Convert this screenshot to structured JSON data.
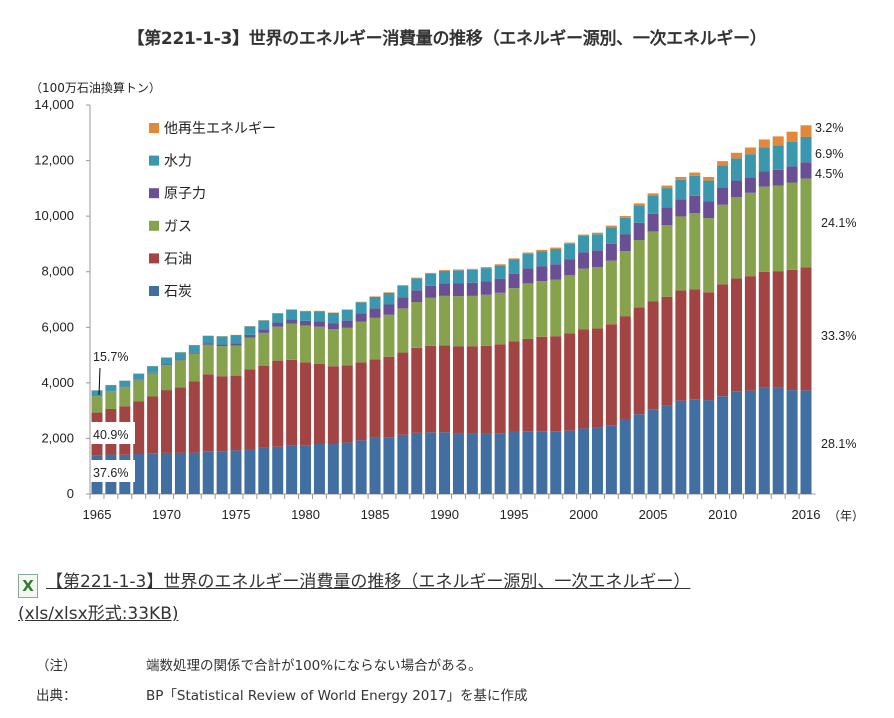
{
  "title": "【第221-1-3】世界のエネルギー消費量の推移（エネルギー源別、一次エネルギー）",
  "link": {
    "icon": "excel-file-icon",
    "icon_glyph": "X",
    "text": "【第221-1-3】世界のエネルギー消費量の推移（エネルギー源別、一次エネルギー）",
    "format": "(xls/xlsx形式:33KB)"
  },
  "notes": [
    {
      "label": "（注）",
      "text": "端数処理の関係で合計が100%にならない場合がある。"
    },
    {
      "label": "出典：",
      "text": "BP「Statistical Review of World Energy 2017」を基に作成"
    }
  ],
  "chart_data": {
    "type": "bar",
    "stacked": true,
    "title": "【第221-1-3】世界のエネルギー消費量の推移（エネルギー源別、一次エネルギー）",
    "ylabel": "（100万石油換算トン）",
    "xlabel": "（年）",
    "ylim": [
      0,
      14000
    ],
    "yticks": [
      0,
      2000,
      4000,
      6000,
      8000,
      10000,
      12000,
      14000
    ],
    "ytick_labels": [
      "0",
      "2,000",
      "4,000",
      "6,000",
      "8,000",
      "10,000",
      "12,000",
      "14,000"
    ],
    "xtick_labels": [
      "1965",
      "1970",
      "1975",
      "1980",
      "1985",
      "1990",
      "1995",
      "2000",
      "2005",
      "2010",
      "2016"
    ],
    "legend_position": "top-left",
    "categories": [
      "1965",
      "1966",
      "1967",
      "1968",
      "1969",
      "1970",
      "1971",
      "1972",
      "1973",
      "1974",
      "1975",
      "1976",
      "1977",
      "1978",
      "1979",
      "1980",
      "1981",
      "1982",
      "1983",
      "1984",
      "1985",
      "1986",
      "1987",
      "1988",
      "1989",
      "1990",
      "1991",
      "1992",
      "1993",
      "1994",
      "1995",
      "1996",
      "1997",
      "1998",
      "1999",
      "2000",
      "2001",
      "2002",
      "2003",
      "2004",
      "2005",
      "2006",
      "2007",
      "2008",
      "2009",
      "2010",
      "2011",
      "2012",
      "2013",
      "2014",
      "2015",
      "2016"
    ],
    "series": [
      {
        "name": "石炭",
        "color": "#416fa2",
        "values": [
          1400,
          1420,
          1410,
          1440,
          1470,
          1480,
          1480,
          1490,
          1540,
          1540,
          1570,
          1620,
          1670,
          1700,
          1740,
          1760,
          1800,
          1800,
          1850,
          1930,
          2030,
          2040,
          2130,
          2200,
          2220,
          2220,
          2180,
          2180,
          2180,
          2190,
          2250,
          2260,
          2260,
          2260,
          2280,
          2360,
          2380,
          2470,
          2700,
          2870,
          3050,
          3180,
          3360,
          3410,
          3380,
          3520,
          3700,
          3720,
          3820,
          3820,
          3740,
          3730
        ]
      },
      {
        "name": "石油",
        "color": "#a14443",
        "values": [
          1530,
          1640,
          1750,
          1900,
          2040,
          2260,
          2360,
          2560,
          2770,
          2700,
          2690,
          2870,
          2950,
          3100,
          3090,
          2980,
          2890,
          2800,
          2780,
          2810,
          2820,
          2900,
          2960,
          3060,
          3110,
          3130,
          3140,
          3140,
          3150,
          3200,
          3240,
          3320,
          3400,
          3420,
          3500,
          3570,
          3580,
          3640,
          3700,
          3840,
          3890,
          3920,
          3970,
          3960,
          3880,
          4030,
          4060,
          4120,
          4180,
          4200,
          4330,
          4420
        ]
      },
      {
        "name": "ガス",
        "color": "#87a24c",
        "values": [
          590,
          640,
          690,
          750,
          830,
          900,
          970,
          1000,
          1060,
          1080,
          1080,
          1140,
          1180,
          1220,
          1300,
          1320,
          1330,
          1330,
          1350,
          1460,
          1490,
          1510,
          1590,
          1650,
          1730,
          1780,
          1800,
          1810,
          1840,
          1850,
          1920,
          2000,
          2000,
          2040,
          2090,
          2180,
          2210,
          2290,
          2340,
          2430,
          2510,
          2580,
          2660,
          2740,
          2670,
          2860,
          2920,
          3000,
          3060,
          3080,
          3140,
          3200
        ]
      },
      {
        "name": "原子力",
        "color": "#6a4f94",
        "values": [
          6,
          10,
          14,
          18,
          22,
          20,
          28,
          38,
          48,
          58,
          80,
          100,
          130,
          150,
          160,
          170,
          200,
          220,
          260,
          300,
          340,
          370,
          390,
          420,
          430,
          450,
          470,
          470,
          480,
          500,
          520,
          540,
          540,
          550,
          570,
          585,
          600,
          610,
          600,
          620,
          630,
          640,
          620,
          620,
          610,
          630,
          600,
          560,
          560,
          570,
          580,
          590
        ]
      },
      {
        "name": "水力",
        "color": "#3b97ad",
        "values": [
          200,
          210,
          215,
          225,
          240,
          250,
          260,
          270,
          275,
          295,
          300,
          305,
          315,
          330,
          345,
          350,
          360,
          370,
          390,
          400,
          410,
          420,
          425,
          430,
          440,
          450,
          460,
          470,
          480,
          490,
          510,
          530,
          540,
          550,
          560,
          590,
          580,
          590,
          600,
          630,
          660,
          690,
          700,
          720,
          740,
          780,
          800,
          830,
          860,
          880,
          890,
          910
        ]
      },
      {
        "name": "他再生エネルギー",
        "color": "#e1883a",
        "values": [
          5,
          5,
          5,
          5,
          6,
          6,
          6,
          7,
          7,
          8,
          8,
          9,
          9,
          10,
          10,
          11,
          12,
          14,
          16,
          18,
          20,
          22,
          24,
          26,
          28,
          30,
          31,
          33,
          35,
          37,
          40,
          42,
          45,
          48,
          50,
          52,
          55,
          60,
          65,
          70,
          80,
          90,
          100,
          120,
          130,
          160,
          200,
          240,
          280,
          320,
          360,
          420
        ]
      }
    ],
    "annotations_1965": [
      {
        "series": "石炭",
        "label": "37.6%"
      },
      {
        "series": "石油",
        "label": "40.9%"
      },
      {
        "series": "ガス",
        "label": "15.7%"
      }
    ],
    "annotations_2016": [
      {
        "series": "他再生エネルギー",
        "label": "3.2%"
      },
      {
        "series": "水力",
        "label": "6.9%"
      },
      {
        "series": "原子力",
        "label": "4.5%"
      },
      {
        "series": "ガス",
        "label": "24.1%"
      },
      {
        "series": "石油",
        "label": "33.3%"
      },
      {
        "series": "石炭",
        "label": "28.1%"
      }
    ]
  }
}
